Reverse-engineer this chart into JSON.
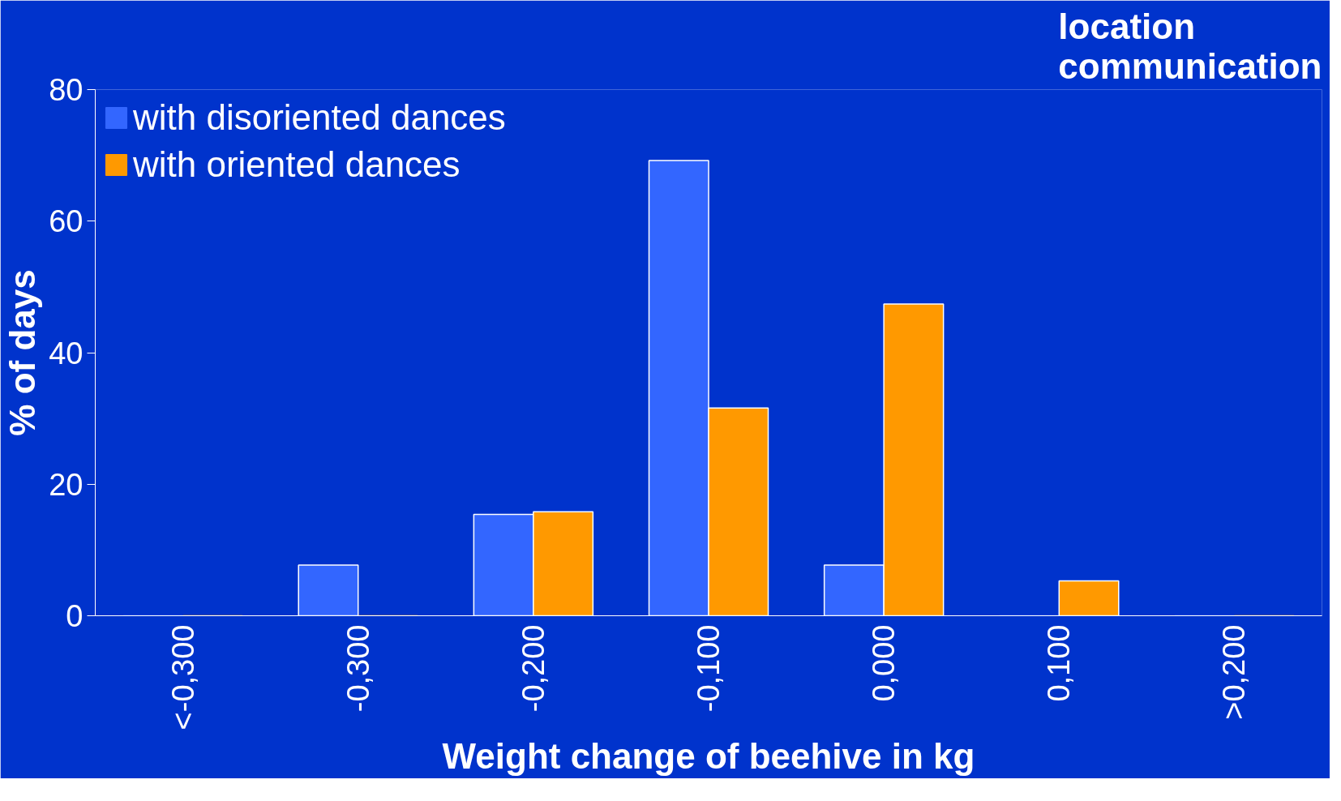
{
  "chart_data": {
    "type": "bar",
    "title": "location\ncommunication",
    "xlabel": "Weight change of beehive in kg",
    "ylabel": "% of days",
    "categories": [
      "<-0,300",
      "-0,300",
      "-0,200",
      "-0,100",
      "0,000",
      "0,100",
      ">0,200"
    ],
    "series": [
      {
        "name": "with disoriented dances",
        "color": "#3366ff",
        "values": [
          0,
          7.7,
          15.4,
          69.2,
          7.7,
          0,
          0
        ]
      },
      {
        "name": "with oriented dances",
        "color": "#ff9900",
        "values": [
          0,
          0,
          15.8,
          31.6,
          47.4,
          5.3,
          0
        ]
      }
    ],
    "ylim": [
      0,
      80
    ],
    "yticks": [
      0,
      20,
      40,
      60,
      80
    ],
    "grid": false,
    "legend": "top left"
  }
}
